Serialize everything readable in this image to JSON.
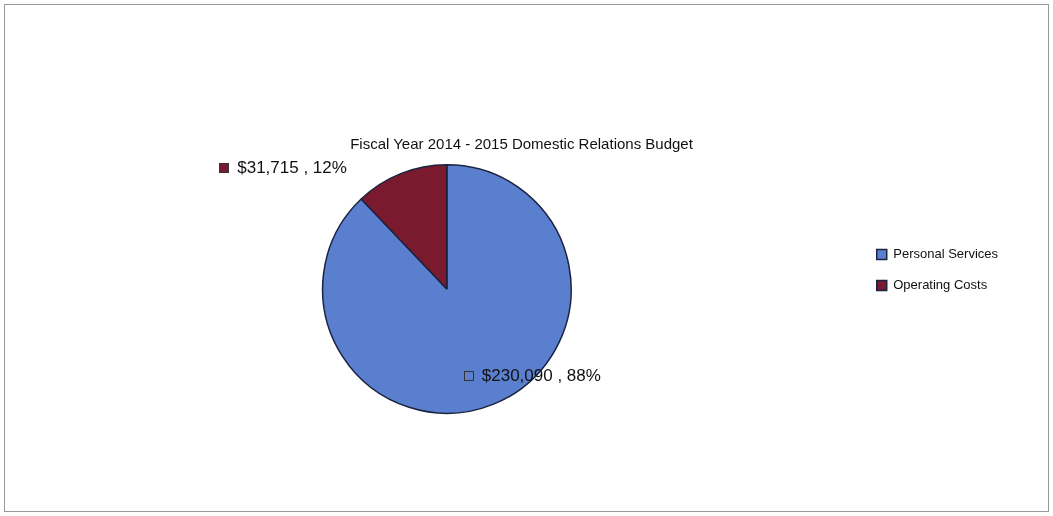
{
  "chart_data": {
    "type": "pie",
    "title": "Fiscal Year 2014 - 2015 Domestic Relations Budget",
    "categories": [
      "Personal Services",
      "Operating Costs"
    ],
    "values": [
      230090,
      31715
    ],
    "colors": [
      "#5b7fcf",
      "#7a1a2e"
    ],
    "value_labels": [
      "$230,090 , 88%",
      "$31,715 , 12%"
    ],
    "legend": "right"
  }
}
